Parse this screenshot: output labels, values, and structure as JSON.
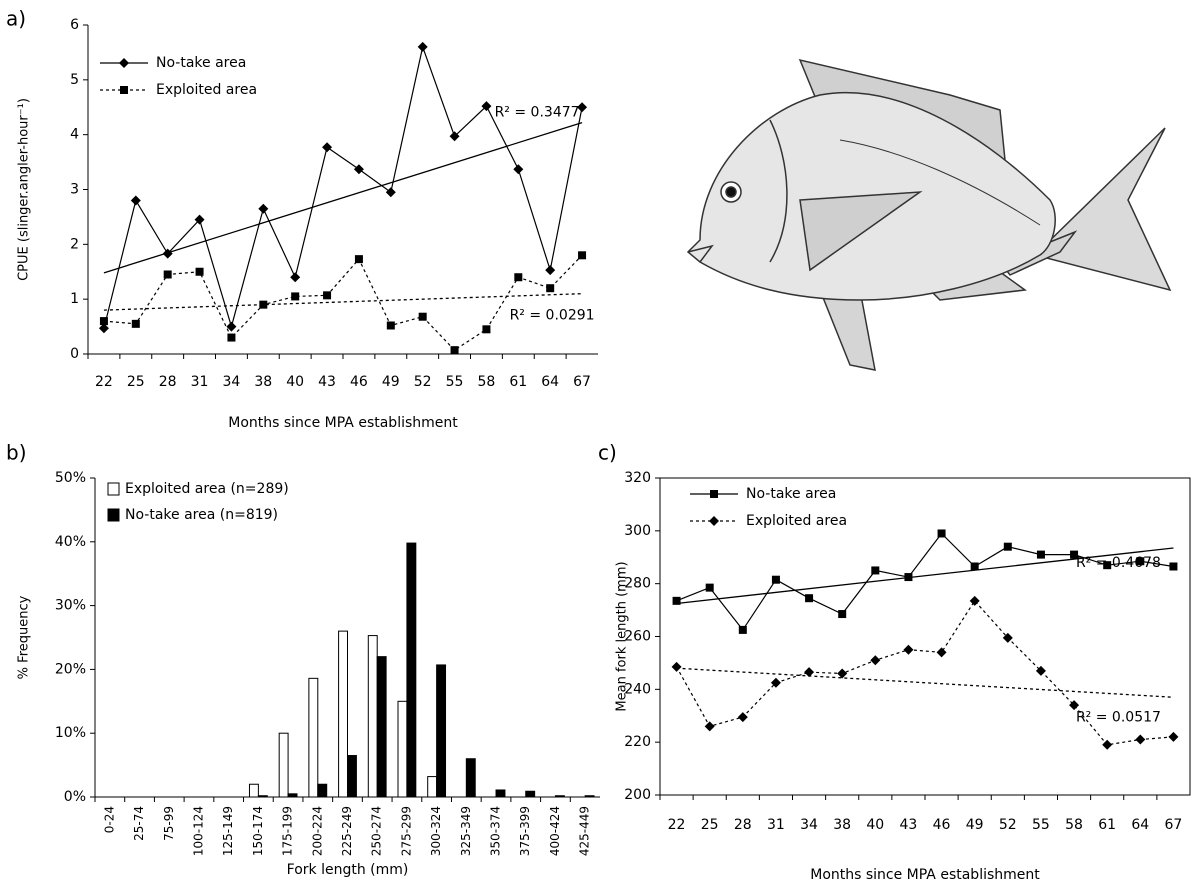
{
  "panel_labels": [
    "a)",
    "b)",
    "c)"
  ],
  "chart_data": [
    {
      "type": "line",
      "y_label": "CPUE (slinger.angler-hour⁻¹)",
      "x_label": "Months since MPA establishment",
      "categories": [
        "22",
        "25",
        "28",
        "31",
        "34",
        "38",
        "40",
        "43",
        "46",
        "49",
        "52",
        "55",
        "58",
        "61",
        "64",
        "67"
      ],
      "ylim": [
        0,
        6
      ],
      "yticks": [
        0,
        1,
        2,
        3,
        4,
        5,
        6
      ],
      "series": [
        {
          "name": "No-take area",
          "color": "#000000",
          "marker": "diamond",
          "line_style": "solid",
          "values": [
            0.47,
            2.8,
            1.83,
            2.45,
            0.5,
            2.65,
            1.4,
            3.77,
            3.37,
            2.95,
            5.6,
            3.97,
            4.52,
            3.37,
            1.53,
            4.5
          ]
        },
        {
          "name": "Exploited area",
          "color": "#000000",
          "marker": "square",
          "line_style": "dotted",
          "values": [
            0.6,
            0.55,
            1.45,
            1.5,
            0.3,
            0.9,
            1.05,
            1.07,
            1.73,
            0.52,
            0.68,
            0.07,
            0.45,
            1.4,
            1.2,
            1.8
          ]
        }
      ],
      "trendlines": [
        {
          "start": 1.48,
          "end": 4.22,
          "label": "R² = 0.3477",
          "line_style": "solid"
        },
        {
          "start": 0.8,
          "end": 1.1,
          "label": "R² = 0.0291",
          "line_style": "dotted"
        }
      ]
    },
    {
      "type": "bar",
      "y_label": "% Frequency",
      "x_label": "Fork length (mm)",
      "categories": [
        "0-24",
        "25-74",
        "75-99",
        "100-124",
        "125-149",
        "150-174",
        "175-199",
        "200-224",
        "225-249",
        "250-274",
        "275-299",
        "300-324",
        "325-349",
        "350-374",
        "375-399",
        "400-424",
        "425-449"
      ],
      "ylim": [
        0,
        50
      ],
      "yticks": [
        {
          "value": 0,
          "label": "0%"
        },
        {
          "value": 10,
          "label": "10%"
        },
        {
          "value": 20,
          "label": "20%"
        },
        {
          "value": 30,
          "label": "30%"
        },
        {
          "value": 40,
          "label": "40%"
        },
        {
          "value": 50,
          "label": "50%"
        }
      ],
      "series": [
        {
          "name": "Exploited area (n=289)",
          "color": "#ffffff",
          "values": [
            0,
            0,
            0,
            0,
            0,
            2,
            10,
            18.6,
            26,
            25.3,
            15,
            3.2,
            0,
            0,
            0,
            0,
            0
          ]
        },
        {
          "name": "No-take area (n=819)",
          "color": "#000000",
          "values": [
            0,
            0,
            0,
            0,
            0,
            0.2,
            0.5,
            2,
            6.5,
            22,
            39.8,
            20.7,
            6,
            1.1,
            0.9,
            0.2,
            0.2
          ]
        }
      ]
    },
    {
      "type": "line",
      "y_label": "Mean fork length (mm)",
      "x_label": "Months since MPA establishment",
      "categories": [
        "22",
        "25",
        "28",
        "31",
        "34",
        "38",
        "40",
        "43",
        "46",
        "49",
        "52",
        "55",
        "58",
        "61",
        "64",
        "67"
      ],
      "ylim": [
        200,
        320
      ],
      "yticks": [
        200,
        220,
        240,
        260,
        280,
        300,
        320
      ],
      "series": [
        {
          "name": "No-take area",
          "color": "#000000",
          "marker": "square",
          "line_style": "solid",
          "values": [
            273.5,
            278.5,
            262.5,
            281.5,
            274.5,
            268.5,
            285,
            282.5,
            299,
            286.5,
            294,
            291,
            291,
            287,
            288.5,
            286.5
          ]
        },
        {
          "name": "Exploited area",
          "color": "#000000",
          "marker": "diamond",
          "line_style": "dotted",
          "values": [
            248.5,
            226,
            229.5,
            242.5,
            246.5,
            246,
            251,
            255,
            254,
            273.5,
            259.5,
            247,
            234,
            219,
            221,
            222
          ]
        }
      ],
      "trendlines": [
        {
          "start": 272.5,
          "end": 293.5,
          "label": "R² = 0.4678",
          "line_style": "solid"
        },
        {
          "start": 248,
          "end": 237,
          "label": "R² = 0.0517",
          "line_style": "dotted"
        }
      ]
    }
  ]
}
